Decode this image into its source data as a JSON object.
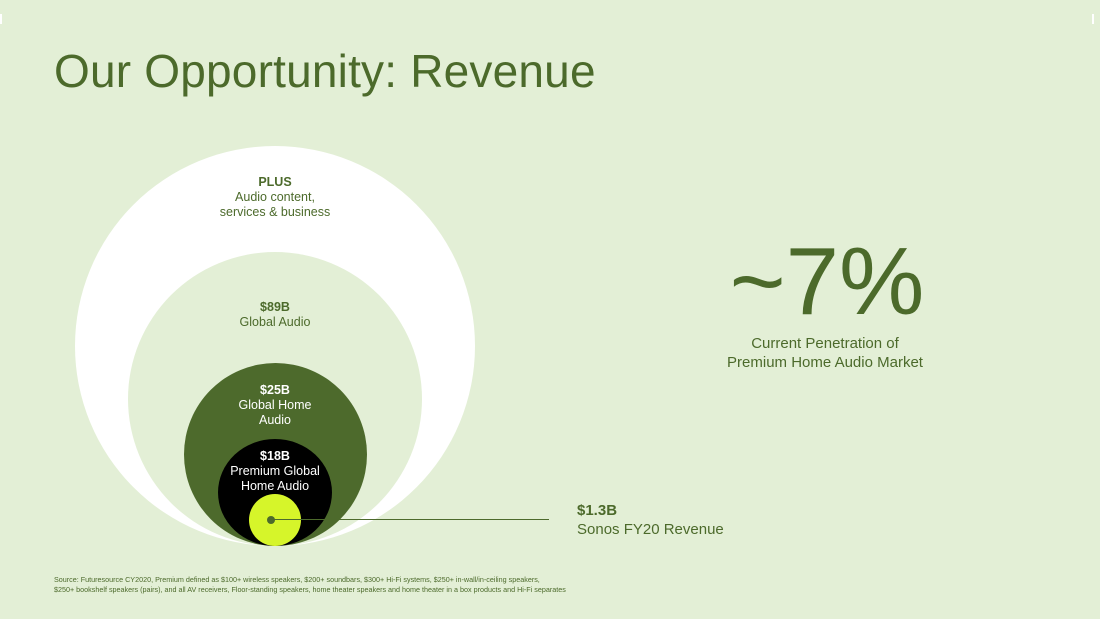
{
  "slide": {
    "title": "Our Opportunity: Revenue",
    "accent_color": "#4c6a2b",
    "background_color": "#e3efd6"
  },
  "circles": {
    "plus": {
      "value": "PLUS",
      "line1": "Audio content,",
      "line2": "services & business"
    },
    "global_audio": {
      "value": "$89B",
      "line1": "Global Audio"
    },
    "global_home_audio": {
      "value": "$25B",
      "line1": "Global Home",
      "line2": "Audio"
    },
    "premium_home_audio": {
      "value": "$18B",
      "line1": "Premium Global",
      "line2": "Home Audio"
    }
  },
  "sonos": {
    "value": "$1.3B",
    "label": "Sonos FY20 Revenue",
    "color": "#d6f52a"
  },
  "penetration": {
    "value": "~7%",
    "line1": "Current Penetration of",
    "line2": "Premium Home Audio Market"
  },
  "source": {
    "line1": "Source: Futuresource CY2020, Premium defined as $100+ wireless speakers, $200+ soundbars, $300+ Hi-Fi systems, $250+ in-wall/in-ceiling speakers,",
    "line2": "$250+ bookshelf speakers (pairs), and all AV receivers, Floor-standing speakers, home theater speakers and home theater in a box products and Hi-Fi separates"
  }
}
